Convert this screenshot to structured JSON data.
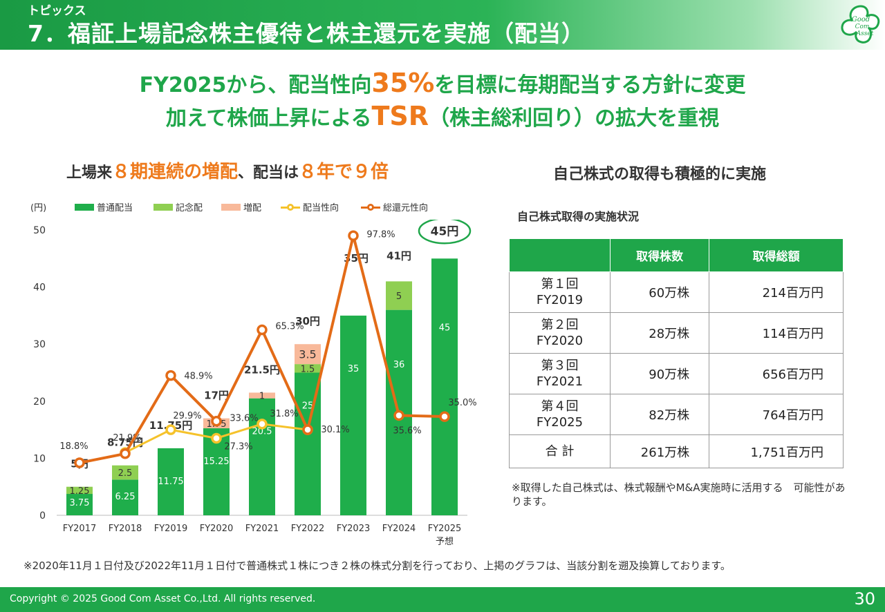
{
  "header": {
    "subtitle": "トピックス",
    "title": "7．福証上場記念株主優待と株主還元を実施（配当）",
    "logo_text": [
      "Good",
      "Com",
      "Asset"
    ]
  },
  "headline": {
    "line1_pre": "FY2025から、配当性向",
    "line1_emph": "35%",
    "line1_post": "を目標に毎期配当する方針に変更",
    "line2_pre": "加えて株価上昇による",
    "line2_emph": "TSR",
    "line2_post": "（株主総利回り）の拡大を重視"
  },
  "chart_title": {
    "p1": "上場来",
    "p2": "８期連続の増配",
    "p3": "、配当は",
    "p4": "８年で９倍"
  },
  "legend": {
    "unit": "(円)",
    "items": [
      "普通配当",
      "記念配",
      "増配",
      "配当性向",
      "総還元性向"
    ]
  },
  "colors": {
    "ordinary": "#1fae4b",
    "commemorative": "#8fcf52",
    "increase": "#f8b99a",
    "payout": "#f5c22b",
    "total_return": "#e36b17"
  },
  "chart_data": {
    "type": "bar",
    "stacked": true,
    "categories": [
      "FY2017",
      "FY2018",
      "FY2019",
      "FY2020",
      "FY2021",
      "FY2022",
      "FY2023",
      "FY2024",
      "FY2025"
    ],
    "category_sublabels": [
      "",
      "",
      "",
      "",
      "",
      "",
      "",
      "",
      "予想"
    ],
    "ylabel": "(円)",
    "ylim": [
      0,
      50
    ],
    "yticks": [
      0,
      10,
      20,
      30,
      40,
      50
    ],
    "series": [
      {
        "name": "普通配当",
        "kind": "bar",
        "values": [
          3.75,
          6.25,
          11.75,
          15.25,
          20.5,
          25,
          35,
          36,
          45
        ],
        "labels": [
          "3.75",
          "6.25",
          "11.75",
          "15.25",
          "20.5",
          "25",
          "35",
          "36",
          "45"
        ]
      },
      {
        "name": "記念配",
        "kind": "bar",
        "values": [
          1.25,
          2.5,
          0,
          0,
          0,
          1.5,
          0,
          5,
          0
        ],
        "labels": [
          "1.25",
          "2.5",
          "",
          "",
          "",
          "1.5",
          "",
          "5",
          ""
        ]
      },
      {
        "name": "増配",
        "kind": "bar",
        "values": [
          0,
          0,
          0,
          1.75,
          1,
          3.5,
          0,
          0,
          0
        ],
        "labels": [
          "",
          "",
          "",
          "1.75",
          "1",
          "3.5",
          "",
          "",
          ""
        ]
      },
      {
        "name": "配当性向",
        "kind": "line",
        "values": [
          null,
          11,
          15,
          13.5,
          16,
          15,
          null,
          null,
          null
        ],
        "labels": [
          "",
          "21.9%",
          "29.9%",
          "27.3%",
          "31.8%",
          "30.1%",
          "",
          "",
          ""
        ]
      },
      {
        "name": "総還元性向",
        "kind": "line",
        "values": [
          9.2,
          10.8,
          24.5,
          16.5,
          32.5,
          15,
          49,
          17.5,
          17.3
        ],
        "labels": [
          "18.8%",
          "",
          "48.9%",
          "33.6%",
          "65.3%",
          "",
          "97.8%",
          "35.6%",
          "35.0%"
        ]
      }
    ],
    "totals": [
      "5円",
      "8.75円",
      "11.75円",
      "17円",
      "21.5円",
      "30円",
      "35円",
      "41円",
      "45円"
    ]
  },
  "right": {
    "title": "自己株式の取得も積極的に実施",
    "caption": "自己株式取得の実施状況",
    "table": {
      "headers": [
        "",
        "取得株数",
        "取得総額"
      ],
      "rows": [
        {
          "l1": "第１回",
          "l2": "FY2019",
          "shares": "60万株",
          "amount": "214百万円"
        },
        {
          "l1": "第２回",
          "l2": "FY2020",
          "shares": "28万株",
          "amount": "114百万円"
        },
        {
          "l1": "第３回",
          "l2": "FY2021",
          "shares": "90万株",
          "amount": "656百万円"
        },
        {
          "l1": "第４回",
          "l2": "FY2025",
          "shares": "82万株",
          "amount": "764百万円"
        }
      ],
      "total": {
        "label": "合 計",
        "shares": "261万株",
        "amount": "1,751百万円"
      }
    },
    "note": "※取得した自己株式は、株式報酬やM&A実施時に活用する　可能性があります。"
  },
  "footnote": "※2020年11月１日付及び2022年11月１日付で普通株式１株につき２株の株式分割を行っており、上掲のグラフは、当該分割を遡及換算しております。",
  "footer": {
    "copyright": "Copyright © 2025 Good Com Asset Co.,Ltd. All rights reserved.",
    "page": "30"
  }
}
